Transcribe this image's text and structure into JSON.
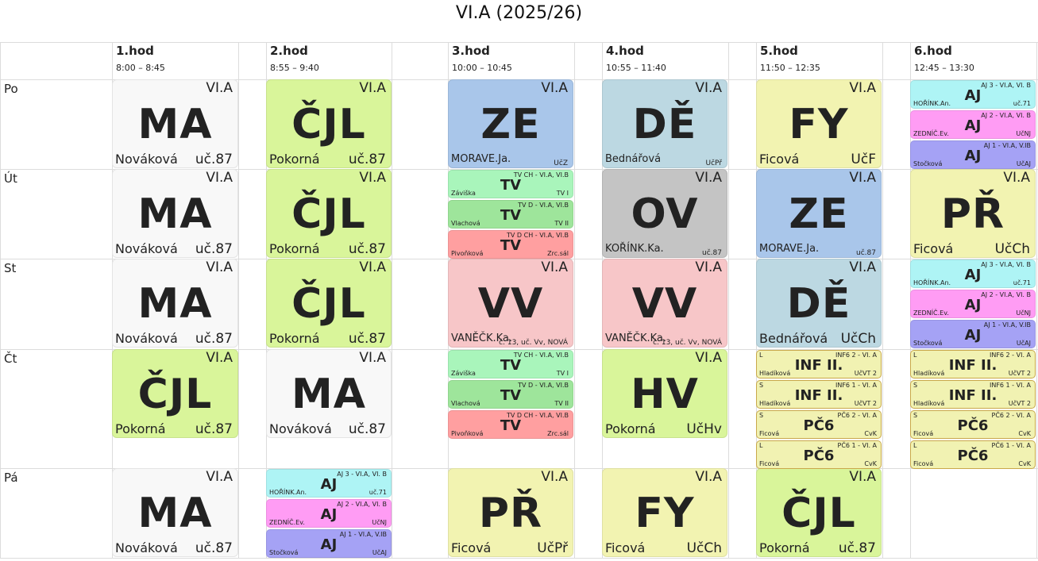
{
  "title": "VI.A (2025/26)",
  "periods": [
    {
      "num": "1.hod",
      "time": "8:00 – 8:45"
    },
    {
      "num": "2.hod",
      "time": "8:55 – 9:40"
    },
    {
      "num": "3.hod",
      "time": "10:00 – 10:45"
    },
    {
      "num": "4.hod",
      "time": "10:55 – 11:40"
    },
    {
      "num": "5.hod",
      "time": "11:50 – 12:35"
    },
    {
      "num": "6.hod",
      "time": "12:45 – 13:30"
    }
  ],
  "days": [
    "Po",
    "Út",
    "St",
    "Čt",
    "Pá"
  ],
  "colors": {
    "white": "#f8f8f8",
    "green": "#d9f59a",
    "blue": "#a9c6ea",
    "lightblue": "#bcd8e2",
    "yellow": "#f2f3b1",
    "gray": "#c4c4c4",
    "pink": "#f7c6c8",
    "cyan": "#aef4f5",
    "magenta": "#ff9cf4",
    "purple": "#a5a2f5",
    "tvgreen1": "#a9f5bb",
    "tvgreen2": "#9ee59b",
    "tvred": "#ff9fa0",
    "inf": "#f1f2b2"
  },
  "lessons": [
    {
      "day": 0,
      "period": 0,
      "subject": "MA",
      "cls": "VI.A",
      "teacher": "Nováková",
      "room": "uč.87",
      "color": "white"
    },
    {
      "day": 0,
      "period": 1,
      "subject": "ČJL",
      "cls": "VI.A",
      "teacher": "Pokorná",
      "room": "uč.87",
      "color": "green"
    },
    {
      "day": 0,
      "period": 2,
      "subject": "ZE",
      "cls": "VI.A",
      "teacher": "MORAVE.Ja.",
      "room": "UčZ",
      "color": "blue",
      "small": true
    },
    {
      "day": 0,
      "period": 3,
      "subject": "DĚ",
      "cls": "VI.A",
      "teacher": "Bednářová",
      "room": "UčPř",
      "color": "lightblue",
      "small": true
    },
    {
      "day": 0,
      "period": 4,
      "subject": "FY",
      "cls": "VI.A",
      "teacher": "Ficová",
      "room": "UčF",
      "color": "yellow"
    },
    {
      "day": 1,
      "period": 0,
      "subject": "MA",
      "cls": "VI.A",
      "teacher": "Nováková",
      "room": "uč.87",
      "color": "white"
    },
    {
      "day": 1,
      "period": 1,
      "subject": "ČJL",
      "cls": "VI.A",
      "teacher": "Pokorná",
      "room": "uč.87",
      "color": "green"
    },
    {
      "day": 1,
      "period": 3,
      "subject": "OV",
      "cls": "VI.A",
      "teacher": "KOŘÍNK.Ka.",
      "room": "uč.87",
      "color": "gray",
      "small": true
    },
    {
      "day": 1,
      "period": 4,
      "subject": "ZE",
      "cls": "VI.A",
      "teacher": "MORAVE.Ja.",
      "room": "uč.87",
      "color": "blue",
      "small": true
    },
    {
      "day": 1,
      "period": 5,
      "subject": "PŘ",
      "cls": "VI.A",
      "teacher": "Ficová",
      "room": "UčCh",
      "color": "yellow"
    },
    {
      "day": 2,
      "period": 0,
      "subject": "MA",
      "cls": "VI.A",
      "teacher": "Nováková",
      "room": "uč.87",
      "color": "white"
    },
    {
      "day": 2,
      "period": 1,
      "subject": "ČJL",
      "cls": "VI.A",
      "teacher": "Pokorná",
      "room": "uč.87",
      "color": "green"
    },
    {
      "day": 2,
      "period": 2,
      "subject": "VV",
      "cls": "VI.A",
      "teacher": "VANĚČK.Ka.",
      "room": "č. 13, uč. Vv, NOVÁ",
      "color": "pink",
      "small": true
    },
    {
      "day": 2,
      "period": 3,
      "subject": "VV",
      "cls": "VI.A",
      "teacher": "VANĚČK.Ka.",
      "room": "č. 13, uč. Vv, NOVÁ",
      "color": "pink",
      "small": true
    },
    {
      "day": 2,
      "period": 4,
      "subject": "DĚ",
      "cls": "VI.A",
      "teacher": "Bednářová",
      "room": "UčCh",
      "color": "lightblue"
    },
    {
      "day": 3,
      "period": 0,
      "subject": "ČJL",
      "cls": "VI.A",
      "teacher": "Pokorná",
      "room": "uč.87",
      "color": "green"
    },
    {
      "day": 3,
      "period": 1,
      "subject": "MA",
      "cls": "VI.A",
      "teacher": "Nováková",
      "room": "uč.87",
      "color": "white"
    },
    {
      "day": 3,
      "period": 3,
      "subject": "HV",
      "cls": "VI.A",
      "teacher": "Pokorná",
      "room": "UčHv",
      "color": "green"
    },
    {
      "day": 4,
      "period": 0,
      "subject": "MA",
      "cls": "VI.A",
      "teacher": "Nováková",
      "room": "uč.87",
      "color": "white"
    },
    {
      "day": 4,
      "period": 2,
      "subject": "PŘ",
      "cls": "VI.A",
      "teacher": "Ficová",
      "room": "UčPř",
      "color": "yellow"
    },
    {
      "day": 4,
      "period": 3,
      "subject": "FY",
      "cls": "VI.A",
      "teacher": "Ficová",
      "room": "UčCh",
      "color": "yellow"
    },
    {
      "day": 4,
      "period": 4,
      "subject": "ČJL",
      "cls": "VI.A",
      "teacher": "Pokorná",
      "room": "uč.87",
      "color": "green"
    }
  ],
  "split_lessons": [
    {
      "day": 0,
      "period": 5,
      "parts": [
        {
          "subject": "AJ",
          "group": "AJ 3 - VI.A, VI. B",
          "teacher": "HOŘÍNK.An.",
          "room": "uč.71",
          "color": "cyan"
        },
        {
          "subject": "AJ",
          "group": "AJ 2 - VI.A, VI. B",
          "teacher": "ZEDNÍČ.Ev.",
          "room": "UčNJ",
          "color": "magenta"
        },
        {
          "subject": "AJ",
          "group": "AJ 1 - VI.A, V.IB",
          "teacher": "Stočková",
          "room": "UčAJ",
          "color": "purple"
        }
      ]
    },
    {
      "day": 1,
      "period": 2,
      "parts": [
        {
          "subject": "TV",
          "group": "TV CH - VI.A, VI.B",
          "teacher": "Záviška",
          "room": "TV I",
          "color": "tvgreen1"
        },
        {
          "subject": "TV",
          "group": "TV D - VI.A, VI.B",
          "teacher": "Vlachová",
          "room": "TV II",
          "color": "tvgreen2"
        },
        {
          "subject": "TV",
          "group": "TV D CH - VI.A, VI.B",
          "teacher": "Pivoňková",
          "room": "Zrc.sál",
          "color": "tvred"
        }
      ]
    },
    {
      "day": 2,
      "period": 5,
      "parts": [
        {
          "subject": "AJ",
          "group": "AJ 3 - VI.A, VI. B",
          "teacher": "HOŘÍNK.An.",
          "room": "uč.71",
          "color": "cyan"
        },
        {
          "subject": "AJ",
          "group": "AJ 2 - VI.A, VI. B",
          "teacher": "ZEDNÍČ.Ev.",
          "room": "UčNJ",
          "color": "magenta"
        },
        {
          "subject": "AJ",
          "group": "AJ 1 - VI.A, V.IB",
          "teacher": "Stočková",
          "room": "UčAJ",
          "color": "purple"
        }
      ]
    },
    {
      "day": 3,
      "period": 2,
      "parts": [
        {
          "subject": "TV",
          "group": "TV CH - VI.A, VI.B",
          "teacher": "Záviška",
          "room": "TV I",
          "color": "tvgreen1"
        },
        {
          "subject": "TV",
          "group": "TV D - VI.A, VI.B",
          "teacher": "Vlachová",
          "room": "TV II",
          "color": "tvgreen2"
        },
        {
          "subject": "TV",
          "group": "TV D CH - VI.A, VI.B",
          "teacher": "Pivoňková",
          "room": "Zrc.sál",
          "color": "tvred"
        }
      ]
    },
    {
      "day": 3,
      "period": 4,
      "parts": [
        {
          "subject": "INF II.",
          "week": "L",
          "group": "INF6 2 - VI. A",
          "teacher": "Hladíková",
          "room": "UčVT 2",
          "color": "inf"
        },
        {
          "subject": "INF II.",
          "week": "S",
          "group": "INF6 1 - VI. A",
          "teacher": "Hladíková",
          "room": "UčVT 2",
          "color": "inf"
        },
        {
          "subject": "PČ6",
          "week": "S",
          "group": "PČ6 2 - VI. A",
          "teacher": "Ficová",
          "room": "CvK",
          "color": "inf"
        },
        {
          "subject": "PČ6",
          "week": "L",
          "group": "PČ6 1 - VI. A",
          "teacher": "Ficová",
          "room": "CvK",
          "color": "inf"
        }
      ]
    },
    {
      "day": 3,
      "period": 5,
      "parts": [
        {
          "subject": "INF II.",
          "week": "L",
          "group": "INF6 2 - VI. A",
          "teacher": "Hladíková",
          "room": "UčVT 2",
          "color": "inf"
        },
        {
          "subject": "INF II.",
          "week": "S",
          "group": "INF6 1 - VI. A",
          "teacher": "Hladíková",
          "room": "UčVT 2",
          "color": "inf"
        },
        {
          "subject": "PČ6",
          "week": "S",
          "group": "PČ6 2 - VI. A",
          "teacher": "Ficová",
          "room": "CvK",
          "color": "inf"
        },
        {
          "subject": "PČ6",
          "week": "L",
          "group": "PČ6 1 - VI. A",
          "teacher": "Ficová",
          "room": "CvK",
          "color": "inf"
        }
      ]
    },
    {
      "day": 4,
      "period": 1,
      "parts": [
        {
          "subject": "AJ",
          "group": "AJ 3 - VI.A, VI. B",
          "teacher": "HOŘÍNK.An.",
          "room": "uč.71",
          "color": "cyan"
        },
        {
          "subject": "AJ",
          "group": "AJ 2 - VI.A, VI. B",
          "teacher": "ZEDNÍČ.Ev.",
          "room": "UčNJ",
          "color": "magenta"
        },
        {
          "subject": "AJ",
          "group": "AJ 1 - VI.A, V.IB",
          "teacher": "Stočková",
          "room": "UčAJ",
          "color": "purple"
        }
      ]
    }
  ]
}
